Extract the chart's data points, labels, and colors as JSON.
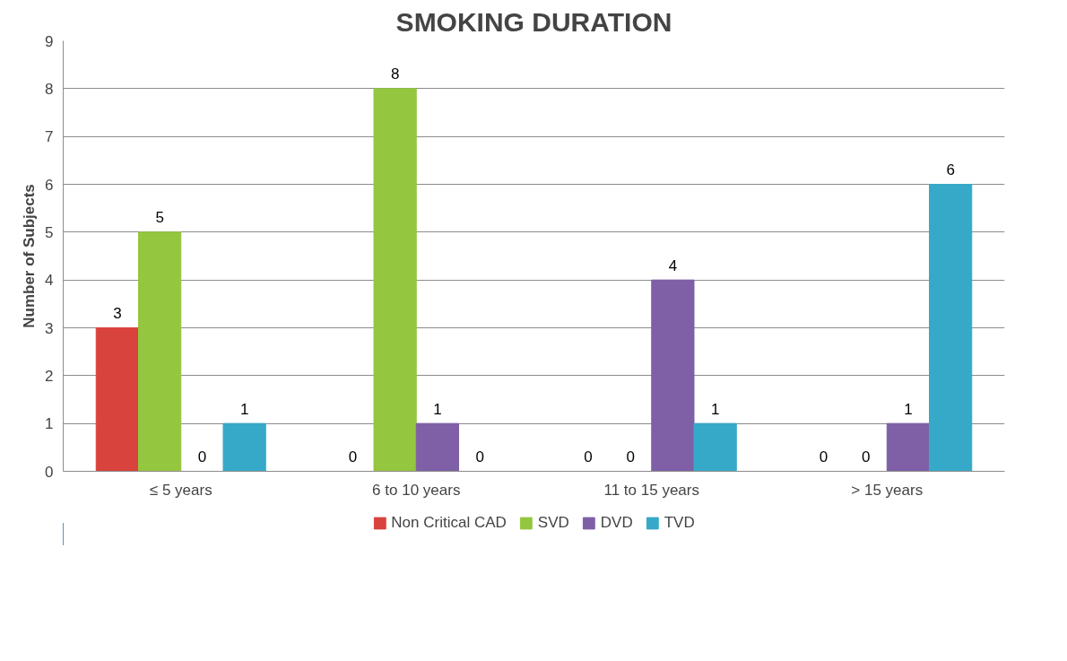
{
  "chart_data": {
    "type": "bar",
    "title": "SMOKING DURATION",
    "ylabel": "Number of Subjects",
    "categories": [
      "≤ 5 years",
      "6 to 10 years",
      "11 to 15 years",
      "> 15 years"
    ],
    "series": [
      {
        "name": "Non Critical CAD",
        "color": "#d9433d",
        "values": [
          3,
          0,
          0,
          0
        ]
      },
      {
        "name": "SVD",
        "color": "#94c63f",
        "values": [
          5,
          8,
          0,
          0
        ]
      },
      {
        "name": "DVD",
        "color": "#7f60a6",
        "values": [
          0,
          1,
          4,
          1
        ]
      },
      {
        "name": "TVD",
        "color": "#36a9c9",
        "values": [
          1,
          0,
          1,
          6
        ]
      }
    ],
    "ylim": [
      0,
      9
    ],
    "yticks": [
      0,
      1,
      2,
      3,
      4,
      5,
      6,
      7,
      8,
      9
    ],
    "grid": "y",
    "legend": "bottom",
    "data_labels": true
  }
}
